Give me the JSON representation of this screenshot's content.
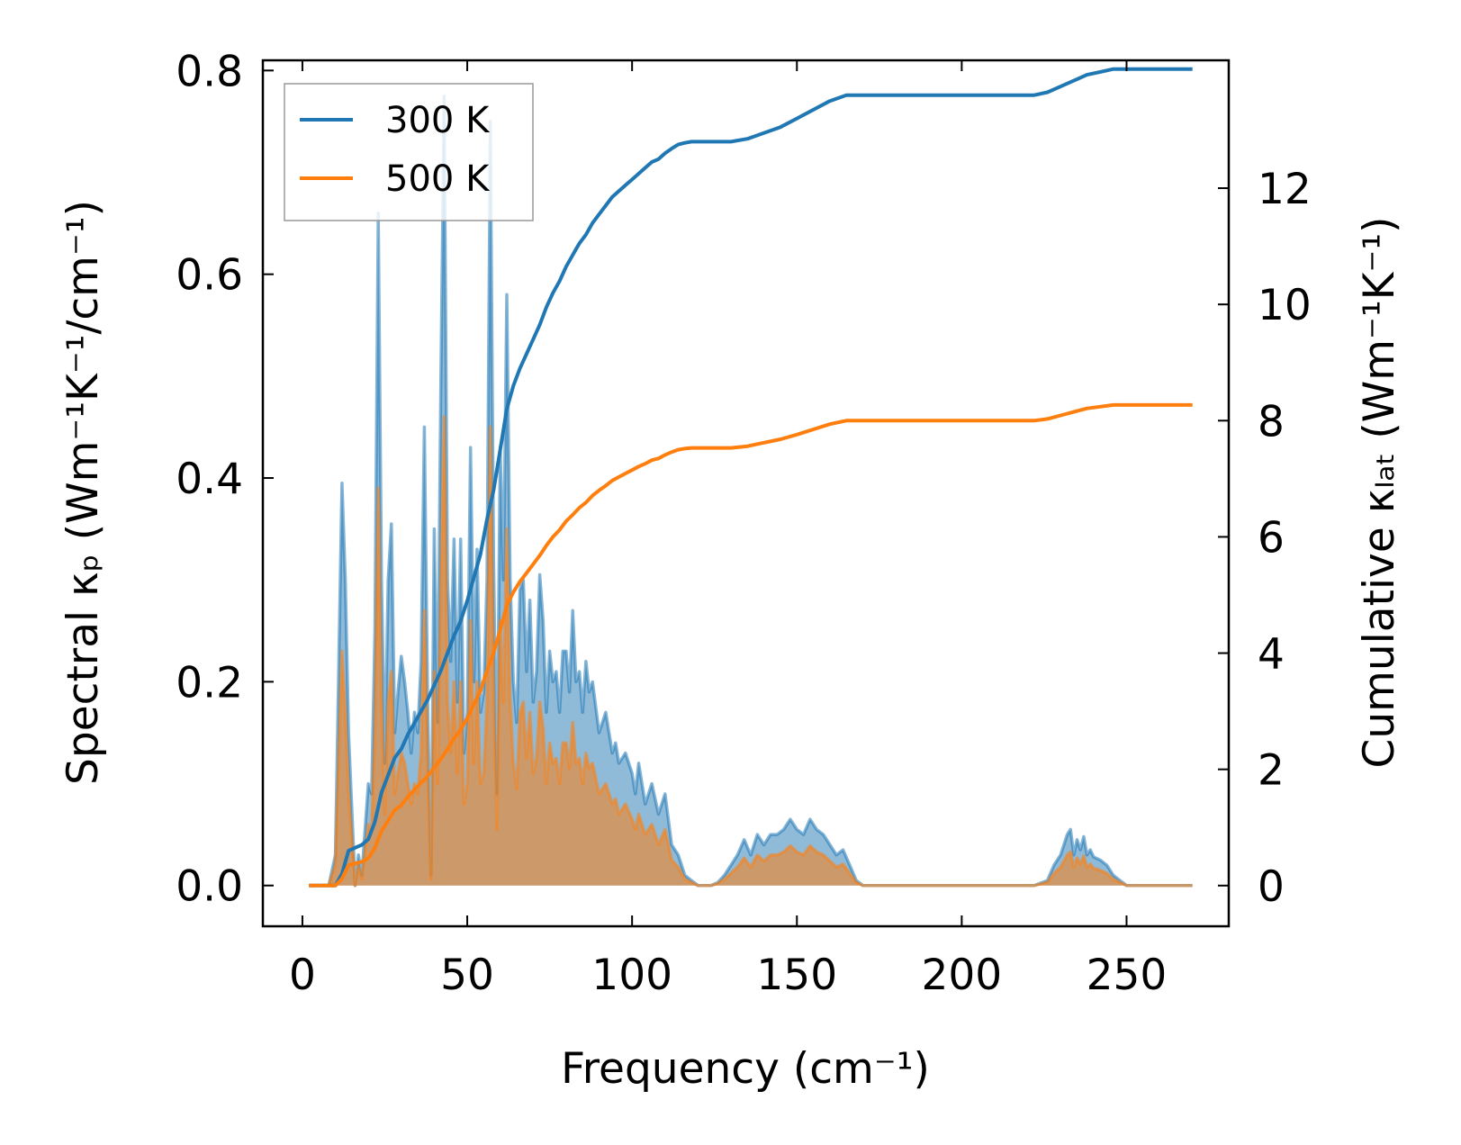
{
  "chart_data": {
    "type": "line",
    "xlabel": "Frequency (cm⁻¹)",
    "ylabel_left": "Spectral κₚ (Wm⁻¹K⁻¹/cm⁻¹)",
    "ylabel_right": "Cumulative κₗₐₜ (Wm⁻¹K⁻¹)",
    "xlim": [
      -12,
      281
    ],
    "ylim_left": [
      -0.04,
      0.81
    ],
    "ylim_right": [
      -0.7,
      14.2
    ],
    "xticks": [
      0,
      50,
      100,
      150,
      200,
      250
    ],
    "yticks_left": [
      0.0,
      0.2,
      0.4,
      0.6,
      0.8
    ],
    "yticks_left_labels": [
      "0.0",
      "0.2",
      "0.4",
      "0.6",
      "0.8"
    ],
    "yticks_right": [
      0,
      2,
      4,
      6,
      8,
      10,
      12
    ],
    "legend_position": "upper-left",
    "colors": {
      "300K": "#1f77b4",
      "500K": "#ff7f0e"
    },
    "series": [
      {
        "name": "300 K",
        "color": "#1f77b4",
        "spectral": {
          "x": [
            2,
            8,
            10,
            12,
            13,
            14,
            16,
            17,
            18,
            20,
            21,
            22,
            23,
            24,
            25,
            26,
            27,
            28,
            29,
            30,
            31,
            32,
            33,
            34,
            35,
            36,
            37,
            38,
            39,
            40,
            41,
            42,
            43,
            44,
            45,
            46,
            47,
            48,
            49,
            50,
            51,
            52,
            53,
            54,
            55,
            56,
            57,
            58,
            59,
            60,
            61,
            62,
            63,
            64,
            65,
            66,
            67,
            68,
            69,
            70,
            71,
            72,
            73,
            74,
            75,
            76,
            77,
            78,
            79,
            80,
            81,
            82,
            83,
            84,
            85,
            86,
            87,
            88,
            90,
            92,
            94,
            95,
            96,
            98,
            100,
            101,
            102,
            104,
            106,
            108,
            110,
            112,
            114,
            116,
            118,
            120,
            122,
            124,
            126,
            128,
            130,
            132,
            134,
            136,
            138,
            140,
            142,
            144,
            146,
            148,
            150,
            152,
            154,
            156,
            158,
            160,
            162,
            164,
            166,
            168,
            170,
            200,
            222,
            226,
            228,
            230,
            232,
            233,
            234,
            235,
            236,
            237,
            238,
            239,
            240,
            242,
            244,
            246,
            248,
            250,
            270
          ],
          "y": [
            0,
            0,
            0.03,
            0.395,
            0.3,
            0.15,
            0.0,
            0.03,
            0.01,
            0.1,
            0.09,
            0.25,
            0.66,
            0.3,
            0.12,
            0.3,
            0.355,
            0.15,
            0.19,
            0.225,
            0.2,
            0.17,
            0.13,
            0.17,
            0.15,
            0.22,
            0.45,
            0.18,
            0.01,
            0.35,
            0.16,
            0.5,
            0.775,
            0.3,
            0.22,
            0.34,
            0.18,
            0.34,
            0.13,
            0.17,
            0.43,
            0.2,
            0.33,
            0.17,
            0.19,
            0.3,
            0.75,
            0.32,
            0.09,
            0.43,
            0.3,
            0.58,
            0.3,
            0.2,
            0.16,
            0.29,
            0.3,
            0.21,
            0.28,
            0.18,
            0.21,
            0.305,
            0.26,
            0.17,
            0.23,
            0.2,
            0.21,
            0.17,
            0.23,
            0.23,
            0.19,
            0.27,
            0.2,
            0.21,
            0.17,
            0.22,
            0.19,
            0.2,
            0.15,
            0.17,
            0.13,
            0.14,
            0.12,
            0.13,
            0.11,
            0.09,
            0.12,
            0.08,
            0.1,
            0.07,
            0.09,
            0.04,
            0.03,
            0.01,
            0.005,
            0.0,
            0.0,
            0.0,
            0.003,
            0.01,
            0.02,
            0.03,
            0.045,
            0.03,
            0.05,
            0.04,
            0.05,
            0.05,
            0.055,
            0.065,
            0.055,
            0.05,
            0.065,
            0.055,
            0.05,
            0.04,
            0.03,
            0.035,
            0.02,
            0.005,
            0.0,
            0.0,
            0.0,
            0.005,
            0.02,
            0.03,
            0.05,
            0.055,
            0.03,
            0.045,
            0.035,
            0.048,
            0.03,
            0.035,
            0.028,
            0.025,
            0.02,
            0.01,
            0.005,
            0.0,
            0.0
          ]
        },
        "cumulative": {
          "x": [
            2,
            10,
            12,
            14,
            16,
            18,
            20,
            22,
            24,
            26,
            28,
            30,
            32,
            34,
            36,
            38,
            40,
            42,
            44,
            46,
            48,
            50,
            52,
            54,
            56,
            58,
            60,
            62,
            64,
            66,
            68,
            70,
            72,
            74,
            76,
            78,
            80,
            82,
            84,
            86,
            88,
            90,
            92,
            94,
            96,
            98,
            100,
            102,
            104,
            106,
            108,
            110,
            112,
            114,
            116,
            118,
            120,
            125,
            130,
            135,
            140,
            145,
            150,
            155,
            160,
            165,
            170,
            200,
            222,
            226,
            230,
            234,
            238,
            242,
            246,
            250,
            270
          ],
          "y": [
            0,
            0,
            0.2,
            0.6,
            0.65,
            0.7,
            0.8,
            1.1,
            1.6,
            1.9,
            2.2,
            2.35,
            2.6,
            2.8,
            3.0,
            3.2,
            3.45,
            3.7,
            4.0,
            4.3,
            4.55,
            4.9,
            5.3,
            5.7,
            6.3,
            6.8,
            7.5,
            8.2,
            8.6,
            8.9,
            9.15,
            9.4,
            9.65,
            9.95,
            10.2,
            10.4,
            10.65,
            10.85,
            11.05,
            11.2,
            11.4,
            11.55,
            11.7,
            11.85,
            11.95,
            12.05,
            12.15,
            12.25,
            12.35,
            12.45,
            12.5,
            12.6,
            12.68,
            12.75,
            12.78,
            12.8,
            12.8,
            12.8,
            12.8,
            12.85,
            12.95,
            13.05,
            13.2,
            13.35,
            13.5,
            13.6,
            13.6,
            13.6,
            13.6,
            13.65,
            13.75,
            13.85,
            13.95,
            14.0,
            14.05,
            14.05,
            14.05
          ]
        }
      },
      {
        "name": "500 K",
        "color": "#ff7f0e",
        "spectral": {
          "x": [
            2,
            8,
            10,
            12,
            13,
            14,
            16,
            17,
            18,
            20,
            21,
            22,
            23,
            24,
            25,
            26,
            27,
            28,
            29,
            30,
            31,
            32,
            33,
            34,
            35,
            36,
            37,
            38,
            39,
            40,
            41,
            42,
            43,
            44,
            45,
            46,
            47,
            48,
            49,
            50,
            51,
            52,
            53,
            54,
            55,
            56,
            57,
            58,
            59,
            60,
            61,
            62,
            63,
            64,
            65,
            66,
            67,
            68,
            69,
            70,
            71,
            72,
            73,
            74,
            75,
            76,
            77,
            78,
            79,
            80,
            81,
            82,
            83,
            84,
            85,
            86,
            87,
            88,
            90,
            92,
            94,
            95,
            96,
            98,
            100,
            101,
            102,
            104,
            106,
            108,
            110,
            112,
            114,
            116,
            118,
            120,
            122,
            124,
            126,
            128,
            130,
            132,
            134,
            136,
            138,
            140,
            142,
            144,
            146,
            148,
            150,
            152,
            154,
            156,
            158,
            160,
            162,
            164,
            166,
            168,
            170,
            200,
            222,
            226,
            228,
            230,
            232,
            233,
            234,
            235,
            236,
            237,
            238,
            239,
            240,
            242,
            244,
            246,
            248,
            250,
            270
          ],
          "y": [
            0,
            0,
            0.02,
            0.23,
            0.17,
            0.09,
            0.0,
            0.02,
            0.006,
            0.06,
            0.055,
            0.15,
            0.39,
            0.18,
            0.07,
            0.18,
            0.21,
            0.09,
            0.11,
            0.13,
            0.12,
            0.1,
            0.08,
            0.1,
            0.09,
            0.13,
            0.27,
            0.11,
            0.006,
            0.21,
            0.1,
            0.3,
            0.46,
            0.18,
            0.13,
            0.2,
            0.11,
            0.2,
            0.08,
            0.1,
            0.26,
            0.12,
            0.2,
            0.1,
            0.11,
            0.18,
            0.45,
            0.19,
            0.055,
            0.26,
            0.18,
            0.35,
            0.18,
            0.12,
            0.095,
            0.17,
            0.18,
            0.125,
            0.17,
            0.11,
            0.125,
            0.18,
            0.155,
            0.1,
            0.14,
            0.12,
            0.125,
            0.1,
            0.14,
            0.14,
            0.115,
            0.16,
            0.12,
            0.125,
            0.1,
            0.13,
            0.115,
            0.12,
            0.09,
            0.1,
            0.08,
            0.085,
            0.07,
            0.08,
            0.065,
            0.055,
            0.07,
            0.05,
            0.06,
            0.04,
            0.055,
            0.025,
            0.018,
            0.006,
            0.003,
            0.0,
            0.0,
            0.0,
            0.002,
            0.006,
            0.012,
            0.018,
            0.027,
            0.018,
            0.03,
            0.024,
            0.03,
            0.03,
            0.033,
            0.039,
            0.033,
            0.03,
            0.039,
            0.033,
            0.03,
            0.024,
            0.018,
            0.021,
            0.012,
            0.003,
            0.0,
            0.0,
            0.0,
            0.003,
            0.012,
            0.018,
            0.03,
            0.033,
            0.018,
            0.027,
            0.021,
            0.029,
            0.018,
            0.021,
            0.017,
            0.015,
            0.012,
            0.006,
            0.003,
            0.0,
            0.0
          ]
        },
        "cumulative": {
          "x": [
            2,
            10,
            12,
            14,
            16,
            18,
            20,
            22,
            24,
            26,
            28,
            30,
            32,
            34,
            36,
            38,
            40,
            42,
            44,
            46,
            48,
            50,
            52,
            54,
            56,
            58,
            60,
            62,
            64,
            66,
            68,
            70,
            72,
            74,
            76,
            78,
            80,
            82,
            84,
            86,
            88,
            90,
            92,
            94,
            96,
            98,
            100,
            102,
            104,
            106,
            108,
            110,
            112,
            114,
            116,
            118,
            120,
            125,
            130,
            135,
            140,
            145,
            150,
            155,
            160,
            165,
            170,
            200,
            222,
            226,
            230,
            234,
            238,
            242,
            246,
            250,
            270
          ],
          "y": [
            0,
            0,
            0.12,
            0.35,
            0.38,
            0.41,
            0.47,
            0.65,
            0.94,
            1.12,
            1.3,
            1.38,
            1.53,
            1.65,
            1.77,
            1.88,
            2.03,
            2.18,
            2.35,
            2.53,
            2.68,
            2.88,
            3.12,
            3.35,
            3.7,
            4.0,
            4.4,
            4.82,
            5.05,
            5.23,
            5.38,
            5.53,
            5.68,
            5.85,
            6.0,
            6.12,
            6.27,
            6.38,
            6.5,
            6.59,
            6.71,
            6.8,
            6.88,
            6.97,
            7.03,
            7.09,
            7.15,
            7.21,
            7.26,
            7.32,
            7.35,
            7.41,
            7.46,
            7.5,
            7.52,
            7.53,
            7.53,
            7.53,
            7.53,
            7.56,
            7.62,
            7.68,
            7.76,
            7.85,
            7.94,
            8.0,
            8.0,
            8.0,
            8.0,
            8.03,
            8.09,
            8.15,
            8.21,
            8.24,
            8.27,
            8.27,
            8.27
          ]
        }
      }
    ]
  }
}
